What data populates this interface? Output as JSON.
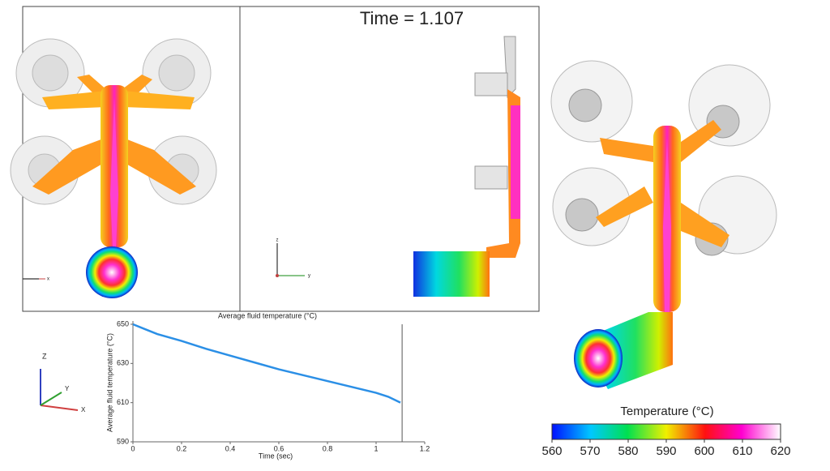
{
  "time_label": "Time = 1.107",
  "chart_data": {
    "type": "line",
    "title": "Average fluid temperature (°C)",
    "xlabel": "Time (sec)",
    "ylabel": "Average fluid temperature (°C)",
    "x": [
      0,
      0.05,
      0.1,
      0.2,
      0.3,
      0.4,
      0.5,
      0.6,
      0.7,
      0.8,
      0.9,
      1.0,
      1.05,
      1.1
    ],
    "values": [
      650,
      647.5,
      645,
      641.5,
      637.5,
      634,
      630.5,
      627,
      624,
      621,
      618,
      615,
      613,
      610
    ],
    "color": "#2b8fe6",
    "cursor_x": 1.107,
    "xlim": [
      0,
      1.2
    ],
    "xticks": [
      0,
      0.2,
      0.4,
      0.6,
      0.8,
      1,
      1.2
    ],
    "ylim": [
      590,
      650
    ],
    "yticks": [
      590,
      610,
      630,
      650
    ]
  },
  "triad": {
    "labels": [
      "Z",
      "Y",
      "X"
    ]
  },
  "view_axes": {
    "left": [
      "x"
    ],
    "middle": [
      "z",
      "y"
    ]
  },
  "colorbar": {
    "title": "Temperature (°C)",
    "lim": [
      560,
      620
    ],
    "ticks": [
      560,
      570,
      580,
      590,
      600,
      610,
      620
    ]
  }
}
